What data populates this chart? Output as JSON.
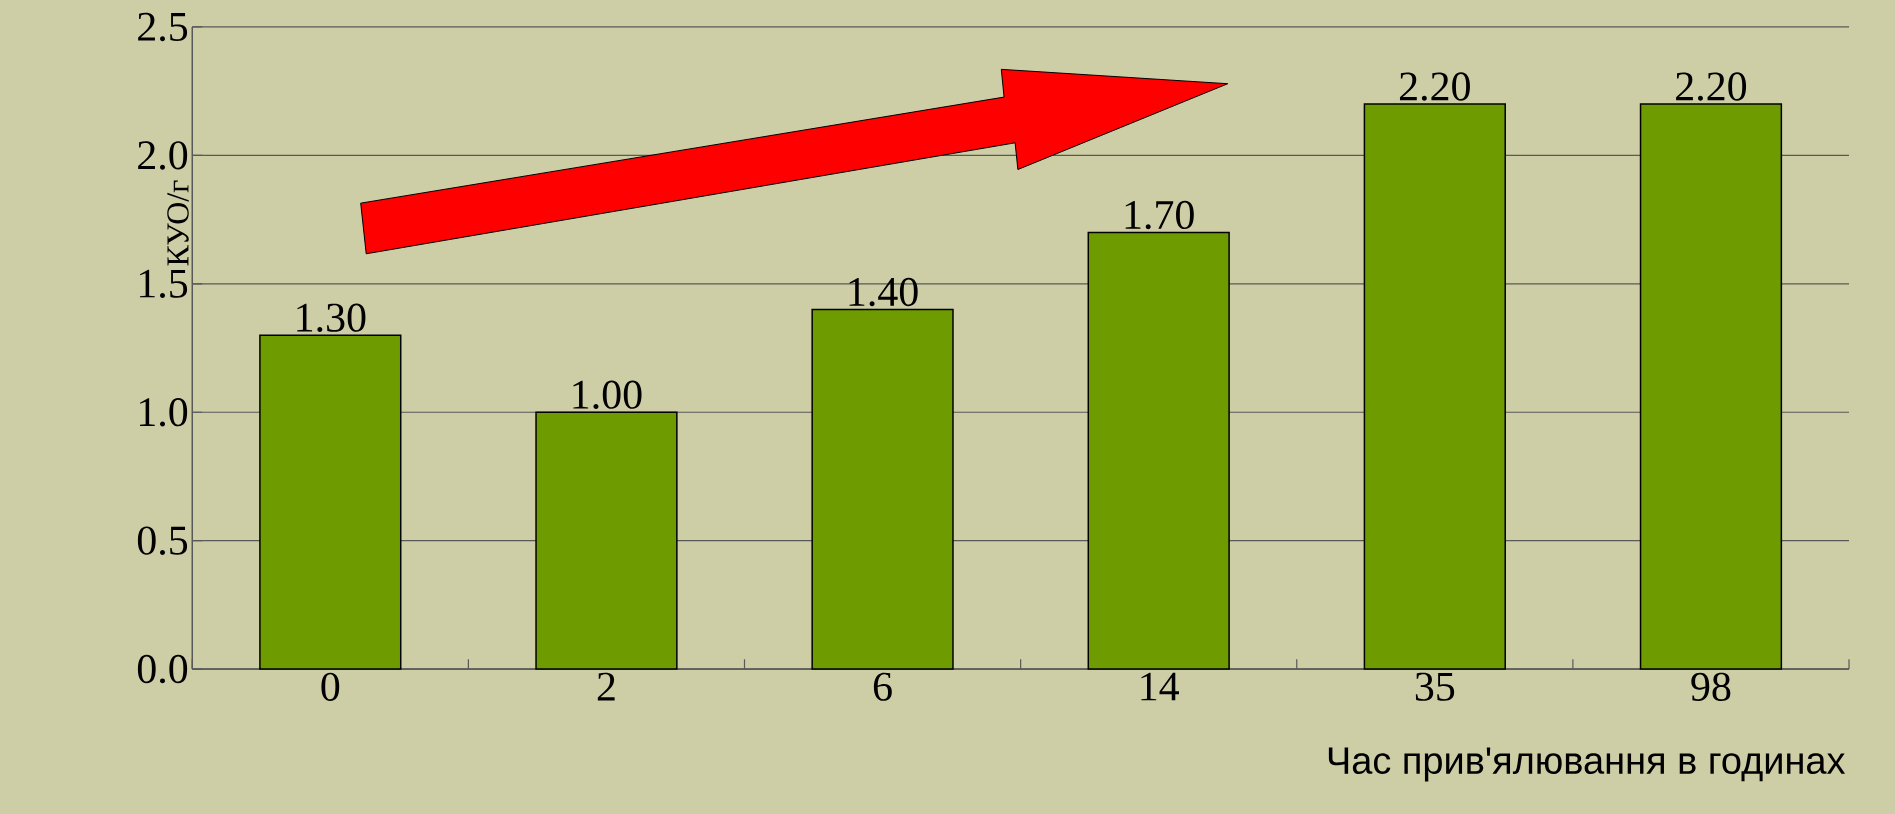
{
  "chart_data": {
    "type": "bar",
    "xlabel": "Час прив'ялювання в годинах",
    "ylabel": "КУО/г",
    "categories": [
      "0",
      "2",
      "6",
      "14",
      "35",
      "98"
    ],
    "values": [
      1.3,
      1.0,
      1.4,
      1.7,
      2.2,
      2.2
    ],
    "value_labels": [
      "1.30",
      "1.00",
      "1.40",
      "1.70",
      "2.20",
      "2.20"
    ],
    "color": "#6e9c00",
    "ylim": [
      0,
      2.5
    ],
    "yticks": [
      {
        "value": 0,
        "label": "0.0"
      },
      0.5,
      {
        "value": 1,
        "label": "1.0"
      },
      1.5,
      {
        "value": 2,
        "label": "2.0"
      },
      2.5
    ],
    "grid": "y"
  }
}
